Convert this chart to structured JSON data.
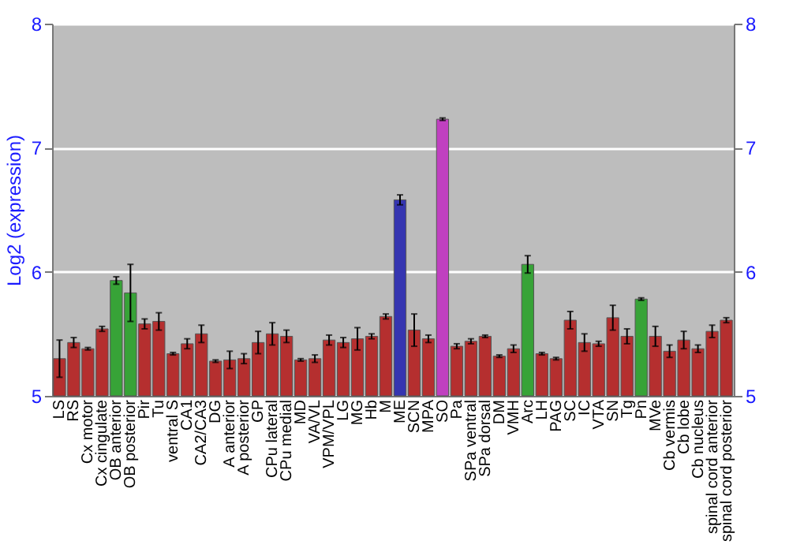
{
  "chart_data": {
    "type": "bar",
    "ylabel": "Log2 (expression)",
    "categories": [
      "LS",
      "RS",
      "Cx motor",
      "Cx cingulate",
      "OB anterior",
      "OB posterior",
      "Pir",
      "Tu",
      "ventral S",
      "CA1",
      "CA2/CA3",
      "DG",
      "A anterior",
      "A posterior",
      "GP",
      "CPu lateral",
      "CPu medial",
      "MD",
      "VA/VL",
      "VPM/VPL",
      "LG",
      "MG",
      "Hb",
      "M",
      "ME",
      "SCN",
      "MPA",
      "SO",
      "Pa",
      "SPa ventral",
      "SPa dorsal",
      "DM",
      "VMH",
      "Arc",
      "LH",
      "PAG",
      "SC",
      "IC",
      "VTA",
      "SN",
      "Tg",
      "Pn",
      "MVe",
      "Cb vermis",
      "Cb lobe",
      "Cb nucleus",
      "spinal cord anterior",
      "spinal cord posterior"
    ],
    "values": [
      5.3,
      5.43,
      5.38,
      5.54,
      5.93,
      5.83,
      5.58,
      5.6,
      5.34,
      5.42,
      5.5,
      5.28,
      5.29,
      5.3,
      5.43,
      5.5,
      5.48,
      5.29,
      5.3,
      5.45,
      5.43,
      5.46,
      5.48,
      5.64,
      6.58,
      5.53,
      5.46,
      7.23,
      5.4,
      5.44,
      5.48,
      5.32,
      5.38,
      6.06,
      5.34,
      5.3,
      5.61,
      5.43,
      5.42,
      5.63,
      5.48,
      5.78,
      5.48,
      5.36,
      5.45,
      5.38,
      5.52,
      5.61
    ],
    "errors": [
      0.15,
      0.04,
      0.01,
      0.02,
      0.03,
      0.23,
      0.04,
      0.07,
      0.01,
      0.04,
      0.07,
      0.01,
      0.07,
      0.04,
      0.09,
      0.09,
      0.05,
      0.01,
      0.03,
      0.04,
      0.04,
      0.09,
      0.02,
      0.02,
      0.04,
      0.13,
      0.03,
      0.01,
      0.02,
      0.02,
      0.01,
      0.01,
      0.03,
      0.07,
      0.01,
      0.01,
      0.07,
      0.07,
      0.02,
      0.1,
      0.06,
      0.01,
      0.08,
      0.05,
      0.07,
      0.03,
      0.05,
      0.02
    ],
    "colors": [
      "#b52f2f",
      "#b52f2f",
      "#b52f2f",
      "#b52f2f",
      "#37a337",
      "#37a337",
      "#b52f2f",
      "#b52f2f",
      "#b52f2f",
      "#b52f2f",
      "#b52f2f",
      "#b52f2f",
      "#b52f2f",
      "#b52f2f",
      "#b52f2f",
      "#b52f2f",
      "#b52f2f",
      "#b52f2f",
      "#b52f2f",
      "#b52f2f",
      "#b52f2f",
      "#b52f2f",
      "#b52f2f",
      "#b52f2f",
      "#3535b0",
      "#b52f2f",
      "#b52f2f",
      "#c040c0",
      "#b52f2f",
      "#b52f2f",
      "#b52f2f",
      "#b52f2f",
      "#b52f2f",
      "#37a337",
      "#b52f2f",
      "#b52f2f",
      "#b52f2f",
      "#b52f2f",
      "#b52f2f",
      "#b52f2f",
      "#b52f2f",
      "#37a337",
      "#b52f2f",
      "#b52f2f",
      "#b52f2f",
      "#b52f2f",
      "#b52f2f",
      "#b52f2f"
    ],
    "ylim": [
      5,
      8
    ],
    "yticks": [
      5,
      6,
      7,
      8
    ],
    "y2lim": [
      5,
      8
    ],
    "y2ticks": [
      5,
      6,
      7,
      8
    ],
    "grid": "y",
    "legend": false
  }
}
